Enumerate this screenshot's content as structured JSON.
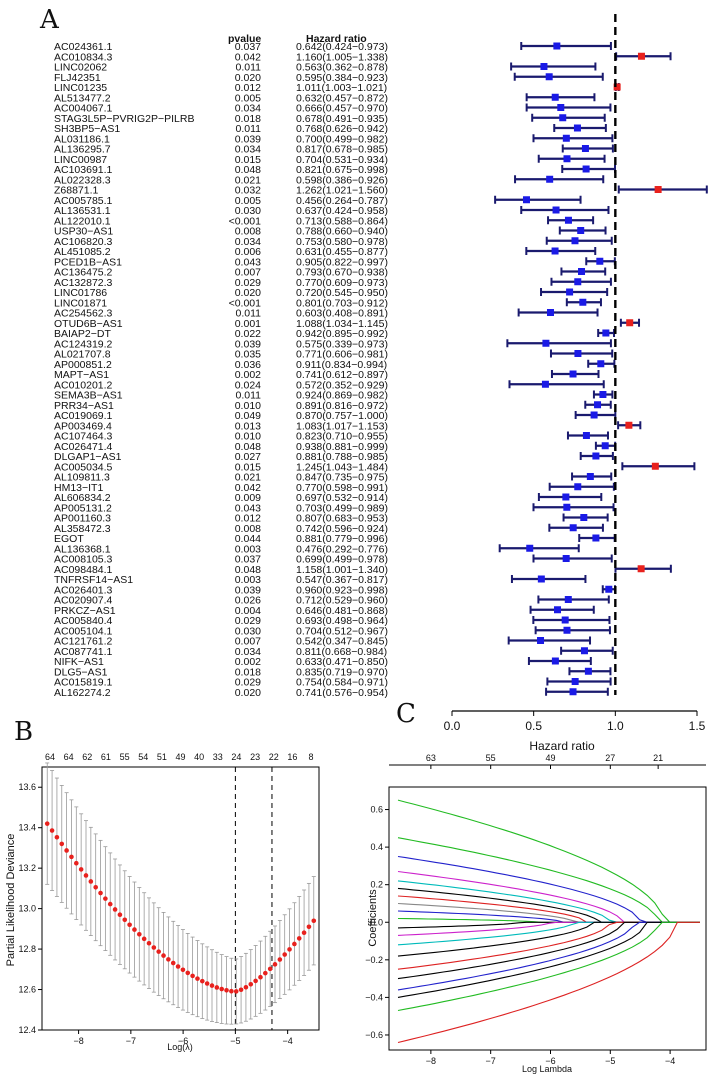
{
  "chart_data": [
    {
      "type": "forest",
      "panel_label": "A",
      "columns": {
        "pvalue": "pvalue",
        "hazard": "Hazard ratio"
      },
      "xlabel": "Hazard ratio",
      "xlim": [
        0,
        1.5
      ],
      "xticks": [
        "0.0",
        "0.5",
        "1.0",
        "1.5"
      ],
      "reference": 1.0,
      "rows": [
        {
          "gene": "AC024361.1",
          "p": "0.037",
          "hr_text": "0.642(0.424−0.973)",
          "hr": 0.642,
          "lo": 0.424,
          "hi": 0.973
        },
        {
          "gene": "AC010834.3",
          "p": "0.042",
          "hr_text": "1.160(1.005−1.338)",
          "hr": 1.16,
          "lo": 1.005,
          "hi": 1.338
        },
        {
          "gene": "LINC02062",
          "p": "0.011",
          "hr_text": "0.563(0.362−0.878)",
          "hr": 0.563,
          "lo": 0.362,
          "hi": 0.878
        },
        {
          "gene": "FLJ42351",
          "p": "0.020",
          "hr_text": "0.595(0.384−0.923)",
          "hr": 0.595,
          "lo": 0.384,
          "hi": 0.923
        },
        {
          "gene": "LINC01235",
          "p": "0.012",
          "hr_text": "1.011(1.003−1.021)",
          "hr": 1.011,
          "lo": 1.003,
          "hi": 1.021
        },
        {
          "gene": "AL513477.2",
          "p": "0.005",
          "hr_text": "0.632(0.457−0.872)",
          "hr": 0.632,
          "lo": 0.457,
          "hi": 0.872
        },
        {
          "gene": "AC004067.1",
          "p": "0.034",
          "hr_text": "0.666(0.457−0.970)",
          "hr": 0.666,
          "lo": 0.457,
          "hi": 0.97
        },
        {
          "gene": "STAG3L5P−PVRIG2P−PILRB",
          "p": "0.018",
          "hr_text": "0.678(0.491−0.935)",
          "hr": 0.678,
          "lo": 0.491,
          "hi": 0.935
        },
        {
          "gene": "SH3BP5−AS1",
          "p": "0.011",
          "hr_text": "0.768(0.626−0.942)",
          "hr": 0.768,
          "lo": 0.626,
          "hi": 0.942
        },
        {
          "gene": "AL031186.1",
          "p": "0.039",
          "hr_text": "0.700(0.499−0.982)",
          "hr": 0.7,
          "lo": 0.499,
          "hi": 0.982
        },
        {
          "gene": "AL136295.7",
          "p": "0.034",
          "hr_text": "0.817(0.678−0.985)",
          "hr": 0.817,
          "lo": 0.678,
          "hi": 0.985
        },
        {
          "gene": "LINC00987",
          "p": "0.015",
          "hr_text": "0.704(0.531−0.934)",
          "hr": 0.704,
          "lo": 0.531,
          "hi": 0.934
        },
        {
          "gene": "AC103691.1",
          "p": "0.048",
          "hr_text": "0.821(0.675−0.998)",
          "hr": 0.821,
          "lo": 0.675,
          "hi": 0.998
        },
        {
          "gene": "AL022328.3",
          "p": "0.021",
          "hr_text": "0.598(0.386−0.926)",
          "hr": 0.598,
          "lo": 0.386,
          "hi": 0.926
        },
        {
          "gene": "Z68871.1",
          "p": "0.032",
          "hr_text": "1.262(1.021−1.560)",
          "hr": 1.262,
          "lo": 1.021,
          "hi": 1.56
        },
        {
          "gene": "AC005785.1",
          "p": "0.005",
          "hr_text": "0.456(0.264−0.787)",
          "hr": 0.456,
          "lo": 0.264,
          "hi": 0.787
        },
        {
          "gene": "AL136531.1",
          "p": "0.030",
          "hr_text": "0.637(0.424−0.958)",
          "hr": 0.637,
          "lo": 0.424,
          "hi": 0.958
        },
        {
          "gene": "AL122010.1",
          "p": "<0.001",
          "hr_text": "0.713(0.588−0.864)",
          "hr": 0.713,
          "lo": 0.588,
          "hi": 0.864
        },
        {
          "gene": "USP30−AS1",
          "p": "0.008",
          "hr_text": "0.788(0.660−0.940)",
          "hr": 0.788,
          "lo": 0.66,
          "hi": 0.94
        },
        {
          "gene": "AC106820.3",
          "p": "0.034",
          "hr_text": "0.753(0.580−0.978)",
          "hr": 0.753,
          "lo": 0.58,
          "hi": 0.978
        },
        {
          "gene": "AL451085.2",
          "p": "0.006",
          "hr_text": "0.631(0.455−0.877)",
          "hr": 0.631,
          "lo": 0.455,
          "hi": 0.877
        },
        {
          "gene": "PCED1B−AS1",
          "p": "0.043",
          "hr_text": "0.905(0.822−0.997)",
          "hr": 0.905,
          "lo": 0.822,
          "hi": 0.997
        },
        {
          "gene": "AC136475.2",
          "p": "0.007",
          "hr_text": "0.793(0.670−0.938)",
          "hr": 0.793,
          "lo": 0.67,
          "hi": 0.938
        },
        {
          "gene": "AC132872.3",
          "p": "0.029",
          "hr_text": "0.770(0.609−0.973)",
          "hr": 0.77,
          "lo": 0.609,
          "hi": 0.973
        },
        {
          "gene": "LINC01786",
          "p": "0.020",
          "hr_text": "0.720(0.545−0.950)",
          "hr": 0.72,
          "lo": 0.545,
          "hi": 0.95
        },
        {
          "gene": "LINC01871",
          "p": "<0.001",
          "hr_text": "0.801(0.703−0.912)",
          "hr": 0.801,
          "lo": 0.703,
          "hi": 0.912
        },
        {
          "gene": "AC254562.3",
          "p": "0.011",
          "hr_text": "0.603(0.408−0.891)",
          "hr": 0.603,
          "lo": 0.408,
          "hi": 0.891
        },
        {
          "gene": "OTUD6B−AS1",
          "p": "0.001",
          "hr_text": "1.088(1.034−1.145)",
          "hr": 1.088,
          "lo": 1.034,
          "hi": 1.145
        },
        {
          "gene": "BAIAP2−DT",
          "p": "0.022",
          "hr_text": "0.942(0.895−0.992)",
          "hr": 0.942,
          "lo": 0.895,
          "hi": 0.992
        },
        {
          "gene": "AC124319.2",
          "p": "0.039",
          "hr_text": "0.575(0.339−0.973)",
          "hr": 0.575,
          "lo": 0.339,
          "hi": 0.973
        },
        {
          "gene": "AL021707.8",
          "p": "0.035",
          "hr_text": "0.771(0.606−0.981)",
          "hr": 0.771,
          "lo": 0.606,
          "hi": 0.981
        },
        {
          "gene": "AP000851.2",
          "p": "0.036",
          "hr_text": "0.911(0.834−0.994)",
          "hr": 0.911,
          "lo": 0.834,
          "hi": 0.994
        },
        {
          "gene": "MAPT−AS1",
          "p": "0.002",
          "hr_text": "0.741(0.612−0.897)",
          "hr": 0.741,
          "lo": 0.612,
          "hi": 0.897
        },
        {
          "gene": "AC010201.2",
          "p": "0.024",
          "hr_text": "0.572(0.352−0.929)",
          "hr": 0.572,
          "lo": 0.352,
          "hi": 0.929
        },
        {
          "gene": "SEMA3B−AS1",
          "p": "0.011",
          "hr_text": "0.924(0.869−0.982)",
          "hr": 0.924,
          "lo": 0.869,
          "hi": 0.982
        },
        {
          "gene": "PRR34−AS1",
          "p": "0.010",
          "hr_text": "0.891(0.816−0.972)",
          "hr": 0.891,
          "lo": 0.816,
          "hi": 0.972
        },
        {
          "gene": "AC019069.1",
          "p": "0.049",
          "hr_text": "0.870(0.757−1.000)",
          "hr": 0.87,
          "lo": 0.757,
          "hi": 1.0
        },
        {
          "gene": "AP003469.4",
          "p": "0.013",
          "hr_text": "1.083(1.017−1.153)",
          "hr": 1.083,
          "lo": 1.017,
          "hi": 1.153
        },
        {
          "gene": "AC107464.3",
          "p": "0.010",
          "hr_text": "0.823(0.710−0.955)",
          "hr": 0.823,
          "lo": 0.71,
          "hi": 0.955
        },
        {
          "gene": "AC026471.4",
          "p": "0.048",
          "hr_text": "0.938(0.881−0.999)",
          "hr": 0.938,
          "lo": 0.881,
          "hi": 0.999
        },
        {
          "gene": "DLGAP1−AS1",
          "p": "0.027",
          "hr_text": "0.881(0.788−0.985)",
          "hr": 0.881,
          "lo": 0.788,
          "hi": 0.985
        },
        {
          "gene": "AC005034.5",
          "p": "0.015",
          "hr_text": "1.245(1.043−1.484)",
          "hr": 1.245,
          "lo": 1.043,
          "hi": 1.484
        },
        {
          "gene": "AL109811.3",
          "p": "0.021",
          "hr_text": "0.847(0.735−0.975)",
          "hr": 0.847,
          "lo": 0.735,
          "hi": 0.975
        },
        {
          "gene": "HM13−IT1",
          "p": "0.042",
          "hr_text": "0.770(0.598−0.991)",
          "hr": 0.77,
          "lo": 0.598,
          "hi": 0.991
        },
        {
          "gene": "AL606834.2",
          "p": "0.009",
          "hr_text": "0.697(0.532−0.914)",
          "hr": 0.697,
          "lo": 0.532,
          "hi": 0.914
        },
        {
          "gene": "AP005131.2",
          "p": "0.043",
          "hr_text": "0.703(0.499−0.989)",
          "hr": 0.703,
          "lo": 0.499,
          "hi": 0.989
        },
        {
          "gene": "AP001160.3",
          "p": "0.012",
          "hr_text": "0.807(0.683−0.953)",
          "hr": 0.807,
          "lo": 0.683,
          "hi": 0.953
        },
        {
          "gene": "AL358472.3",
          "p": "0.008",
          "hr_text": "0.742(0.596−0.924)",
          "hr": 0.742,
          "lo": 0.596,
          "hi": 0.924
        },
        {
          "gene": "EGOT",
          "p": "0.044",
          "hr_text": "0.881(0.779−0.996)",
          "hr": 0.881,
          "lo": 0.779,
          "hi": 0.996
        },
        {
          "gene": "AL136368.1",
          "p": "0.003",
          "hr_text": "0.476(0.292−0.776)",
          "hr": 0.476,
          "lo": 0.292,
          "hi": 0.776
        },
        {
          "gene": "AC008105.3",
          "p": "0.037",
          "hr_text": "0.699(0.499−0.978)",
          "hr": 0.699,
          "lo": 0.499,
          "hi": 0.978
        },
        {
          "gene": "AC098484.1",
          "p": "0.048",
          "hr_text": "1.158(1.001−1.340)",
          "hr": 1.158,
          "lo": 1.001,
          "hi": 1.34
        },
        {
          "gene": "TNFRSF14−AS1",
          "p": "0.003",
          "hr_text": "0.547(0.367−0.817)",
          "hr": 0.547,
          "lo": 0.367,
          "hi": 0.817
        },
        {
          "gene": "AC026401.3",
          "p": "0.039",
          "hr_text": "0.960(0.923−0.998)",
          "hr": 0.96,
          "lo": 0.923,
          "hi": 0.998
        },
        {
          "gene": "AC020907.4",
          "p": "0.026",
          "hr_text": "0.712(0.529−0.960)",
          "hr": 0.712,
          "lo": 0.529,
          "hi": 0.96
        },
        {
          "gene": "PRKCZ−AS1",
          "p": "0.004",
          "hr_text": "0.646(0.481−0.868)",
          "hr": 0.646,
          "lo": 0.481,
          "hi": 0.868
        },
        {
          "gene": "AC005840.4",
          "p": "0.029",
          "hr_text": "0.693(0.498−0.964)",
          "hr": 0.693,
          "lo": 0.498,
          "hi": 0.964
        },
        {
          "gene": "AC005104.1",
          "p": "0.030",
          "hr_text": "0.704(0.512−0.967)",
          "hr": 0.704,
          "lo": 0.512,
          "hi": 0.967
        },
        {
          "gene": "AC121761.2",
          "p": "0.007",
          "hr_text": "0.542(0.347−0.845)",
          "hr": 0.542,
          "lo": 0.347,
          "hi": 0.845
        },
        {
          "gene": "AC087741.1",
          "p": "0.034",
          "hr_text": "0.811(0.668−0.984)",
          "hr": 0.811,
          "lo": 0.668,
          "hi": 0.984
        },
        {
          "gene": "NIFK−AS1",
          "p": "0.002",
          "hr_text": "0.633(0.471−0.850)",
          "hr": 0.633,
          "lo": 0.471,
          "hi": 0.85
        },
        {
          "gene": "DLG5−AS1",
          "p": "0.018",
          "hr_text": "0.835(0.719−0.970)",
          "hr": 0.835,
          "lo": 0.719,
          "hi": 0.97
        },
        {
          "gene": "AC015819.1",
          "p": "0.029",
          "hr_text": "0.754(0.584−0.971)",
          "hr": 0.754,
          "lo": 0.584,
          "hi": 0.971
        },
        {
          "gene": "AL162274.2",
          "p": "0.020",
          "hr_text": "0.741(0.576−0.954)",
          "hr": 0.741,
          "lo": 0.576,
          "hi": 0.954
        }
      ],
      "colors": {
        "risk": "#e8211d",
        "protective": "#1a1ae6",
        "whisker": "#1a1a6e"
      }
    },
    {
      "type": "line",
      "panel_label": "B",
      "subtype": "cross-validation deviance",
      "xlabel": "Log(λ)",
      "ylabel": "Partial Likelihood Deviance",
      "xlim": [
        -8.7,
        -3.4
      ],
      "ylim": [
        12.4,
        13.7
      ],
      "xticks": [
        -8,
        -7,
        -6,
        -5,
        -4
      ],
      "yticks": [
        12.4,
        12.6,
        12.8,
        13.0,
        13.2,
        13.4,
        13.6
      ],
      "top_labels": [
        "64",
        "64",
        "62",
        "61",
        "55",
        "54",
        "51",
        "49",
        "40",
        "33",
        "24",
        "23",
        "22",
        "16",
        "8"
      ],
      "vlines": [
        -5.0,
        -4.3
      ],
      "curve_min": -5.0,
      "curve_start": [
        -8.6,
        13.42
      ],
      "curve_end": [
        -3.5,
        12.94
      ],
      "colors": {
        "points": "#e8211d",
        "errorbars": "#999999"
      }
    },
    {
      "type": "line",
      "panel_label": "C",
      "subtype": "lasso coefficient paths",
      "xlabel": "Log Lambda",
      "ylabel": "Coefficients",
      "xlim": [
        -8.7,
        -3.4
      ],
      "ylim": [
        -0.68,
        0.72
      ],
      "xticks": [
        -8,
        -7,
        -6,
        -5,
        -4
      ],
      "yticks": [
        -0.6,
        -0.4,
        -0.2,
        0.0,
        0.2,
        0.4,
        0.6
      ],
      "top_labels": [
        "63",
        "55",
        "49",
        "27",
        "21"
      ],
      "top_label_positions": [
        -8.0,
        -7.0,
        -6.0,
        -5.0,
        -4.2
      ],
      "paths": [
        {
          "color": "#22bb22",
          "start": 0.65,
          "end_x": -4.1
        },
        {
          "color": "#22bb22",
          "start": 0.45,
          "end_x": -4.2
        },
        {
          "color": "#2222cc",
          "start": 0.35,
          "end_x": -4.5
        },
        {
          "color": "#cc22cc",
          "start": 0.27,
          "end_x": -4.8
        },
        {
          "color": "#00bbbb",
          "start": 0.22,
          "end_x": -5.0
        },
        {
          "color": "#000000",
          "start": 0.18,
          "end_x": -5.2
        },
        {
          "color": "#dd2222",
          "start": 0.14,
          "end_x": -5.4
        },
        {
          "color": "#888888",
          "start": 0.1,
          "end_x": -5.6
        },
        {
          "color": "#2222cc",
          "start": 0.06,
          "end_x": -5.8
        },
        {
          "color": "#22bb22",
          "start": 0.02,
          "end_x": -6.2
        },
        {
          "color": "#000000",
          "start": -0.03,
          "end_x": -6.5
        },
        {
          "color": "#cc22cc",
          "start": -0.07,
          "end_x": -6.0
        },
        {
          "color": "#00bbbb",
          "start": -0.12,
          "end_x": -5.6
        },
        {
          "color": "#000000",
          "start": -0.18,
          "end_x": -5.3
        },
        {
          "color": "#dd2222",
          "start": -0.25,
          "end_x": -5.0
        },
        {
          "color": "#000000",
          "start": -0.3,
          "end_x": -4.8
        },
        {
          "color": "#2222cc",
          "start": -0.36,
          "end_x": -4.6
        },
        {
          "color": "#000000",
          "start": -0.4,
          "end_x": -4.4
        },
        {
          "color": "#22bb22",
          "start": -0.47,
          "end_x": -4.2
        },
        {
          "color": "#dd2222",
          "start": -0.64,
          "end_x": -3.9
        }
      ]
    }
  ]
}
